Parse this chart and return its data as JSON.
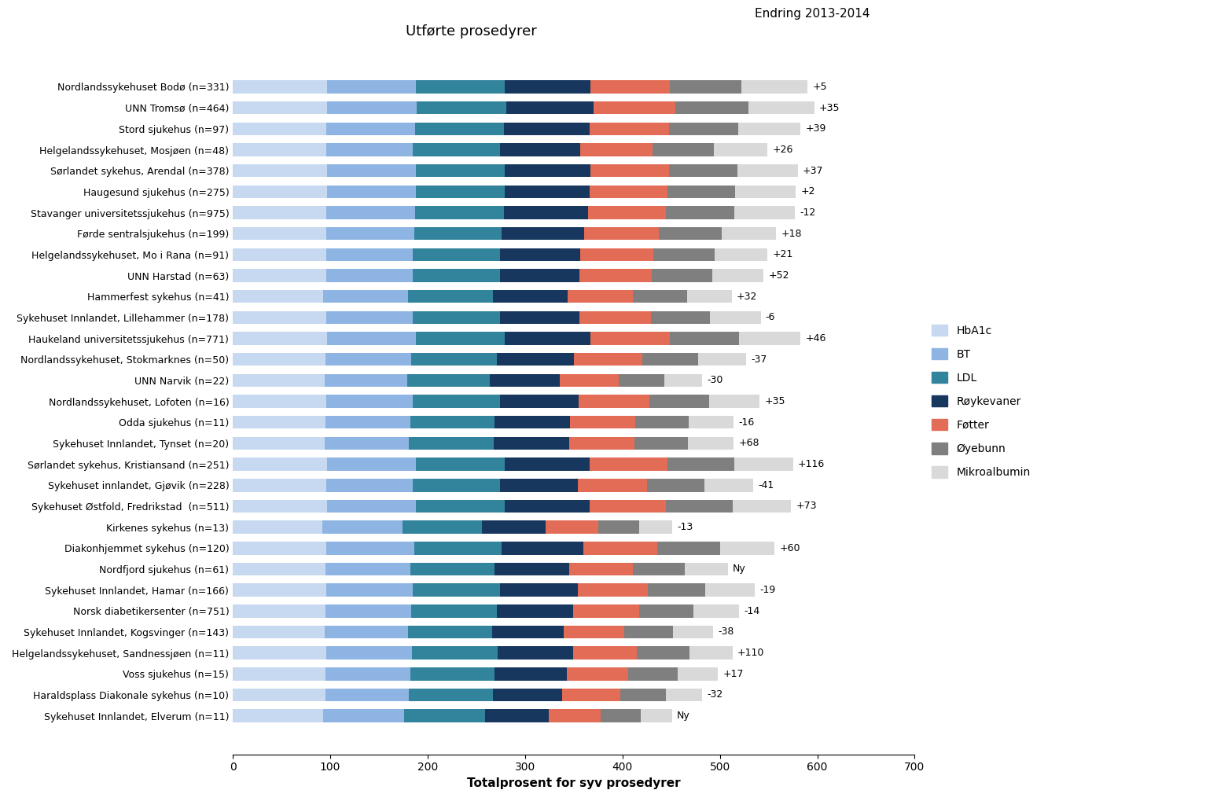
{
  "hospitals": [
    "Nordlandssykehuset Bodø (n=331)",
    "UNN Tromsø (n=464)",
    "Stord sjukehus (n=97)",
    "Helgelandssykehuset, Mosjøen (n=48)",
    "Sørlandet sykehus, Arendal (n=378)",
    "Haugesund sjukehus (n=275)",
    "Stavanger universitetssjukehus (n=975)",
    "Førde sentralsjukehus (n=199)",
    "Helgelandssykehuset, Mo i Rana (n=91)",
    "UNN Harstad (n=63)",
    "Hammerfest sykehus (n=41)",
    "Sykehuset Innlandet, Lillehammer (n=178)",
    "Haukeland universitetssjukehus (n=771)",
    "Nordlandssykehuset, Stokmarknes (n=50)",
    "UNN Narvik (n=22)",
    "Nordlandssykehuset, Lofoten (n=16)",
    "Odda sjukehus (n=11)",
    "Sykehuset Innlandet, Tynset (n=20)",
    "Sørlandet sykehus, Kristiansand (n=251)",
    "Sykehuset innlandet, Gjøvik (n=228)",
    "Sykehuset Østfold, Fredrikstad  (n=511)",
    "Kirkenes sykehus (n=13)",
    "Diakonhjemmet sykehus (n=120)",
    "Nordfjord sjukehus (n=61)",
    "Sykehuset Innlandet, Hamar (n=166)",
    "Norsk diabetikersenter (n=751)",
    "Sykehuset Innlandet, Kogsvinger (n=143)",
    "Helgelandssykehuset, Sandnessjøen (n=11)",
    "Voss sjukehus (n=15)",
    "Haraldsplass Diakonale sykehus (n=10)",
    "Sykehuset Innlandet, Elverum (n=11)"
  ],
  "bar_data": [
    [
      97,
      91,
      91,
      88,
      82,
      73,
      68
    ],
    [
      97,
      92,
      92,
      89,
      84,
      75,
      68
    ],
    [
      96,
      91,
      91,
      88,
      82,
      71,
      64
    ],
    [
      96,
      89,
      89,
      83,
      74,
      63,
      55
    ],
    [
      97,
      91,
      91,
      88,
      81,
      70,
      62
    ],
    [
      97,
      91,
      91,
      87,
      80,
      70,
      62
    ],
    [
      96,
      91,
      91,
      87,
      80,
      70,
      62
    ],
    [
      96,
      90,
      90,
      85,
      76,
      65,
      56
    ],
    [
      96,
      89,
      89,
      83,
      75,
      63,
      54
    ],
    [
      96,
      89,
      89,
      82,
      74,
      62,
      53
    ],
    [
      93,
      87,
      87,
      77,
      67,
      55,
      46
    ],
    [
      96,
      89,
      89,
      82,
      73,
      61,
      52
    ],
    [
      97,
      91,
      91,
      88,
      82,
      71,
      63
    ],
    [
      95,
      88,
      88,
      79,
      70,
      58,
      49
    ],
    [
      94,
      85,
      85,
      72,
      60,
      47,
      39
    ],
    [
      96,
      89,
      89,
      81,
      73,
      61,
      52
    ],
    [
      95,
      87,
      87,
      77,
      67,
      55,
      46
    ],
    [
      94,
      87,
      87,
      77,
      67,
      55,
      47
    ],
    [
      97,
      91,
      91,
      87,
      80,
      69,
      60
    ],
    [
      96,
      89,
      89,
      80,
      71,
      59,
      50
    ],
    [
      97,
      91,
      91,
      87,
      79,
      68,
      60
    ],
    [
      92,
      82,
      82,
      65,
      54,
      42,
      34
    ],
    [
      96,
      90,
      90,
      84,
      76,
      64,
      56
    ],
    [
      95,
      87,
      87,
      76,
      66,
      53,
      44
    ],
    [
      96,
      89,
      89,
      80,
      72,
      59,
      51
    ],
    [
      95,
      88,
      88,
      78,
      68,
      56,
      47
    ],
    [
      94,
      86,
      86,
      74,
      62,
      50,
      41
    ],
    [
      96,
      88,
      88,
      77,
      66,
      54,
      44
    ],
    [
      95,
      87,
      87,
      74,
      63,
      51,
      41
    ],
    [
      95,
      86,
      86,
      71,
      60,
      47,
      37
    ],
    [
      93,
      83,
      83,
      65,
      54,
      41,
      32
    ]
  ],
  "changes": [
    "+5",
    "+35",
    "+39",
    "+26",
    "+37",
    "+2",
    "-12",
    "+18",
    "+21",
    "+52",
    "+32",
    "-6",
    "+46",
    "-37",
    "-30",
    "+35",
    "-16",
    "+68",
    "+116",
    "-41",
    "+73",
    "-13",
    "+60",
    "Ny",
    "-19",
    "-14",
    "-38",
    "+110",
    "+17",
    "-32",
    "Ny"
  ],
  "colors": [
    "#c6d9f0",
    "#8db4e2",
    "#31849b",
    "#17375e",
    "#e36c56",
    "#7f7f7f",
    "#d9d9d9"
  ],
  "legend_labels": [
    "HbA1c",
    "BT",
    "LDL",
    "Røykevaner",
    "Føtter",
    "Øyebunn",
    "Mikroalbumin"
  ],
  "title": "Utførte prosedyrer",
  "change_title": "Endring 2013-2014",
  "xlabel": "Totalprosent for syv prosedyrer",
  "xlim": [
    0,
    700
  ],
  "xticks": [
    0,
    100,
    200,
    300,
    400,
    500,
    600,
    700
  ]
}
